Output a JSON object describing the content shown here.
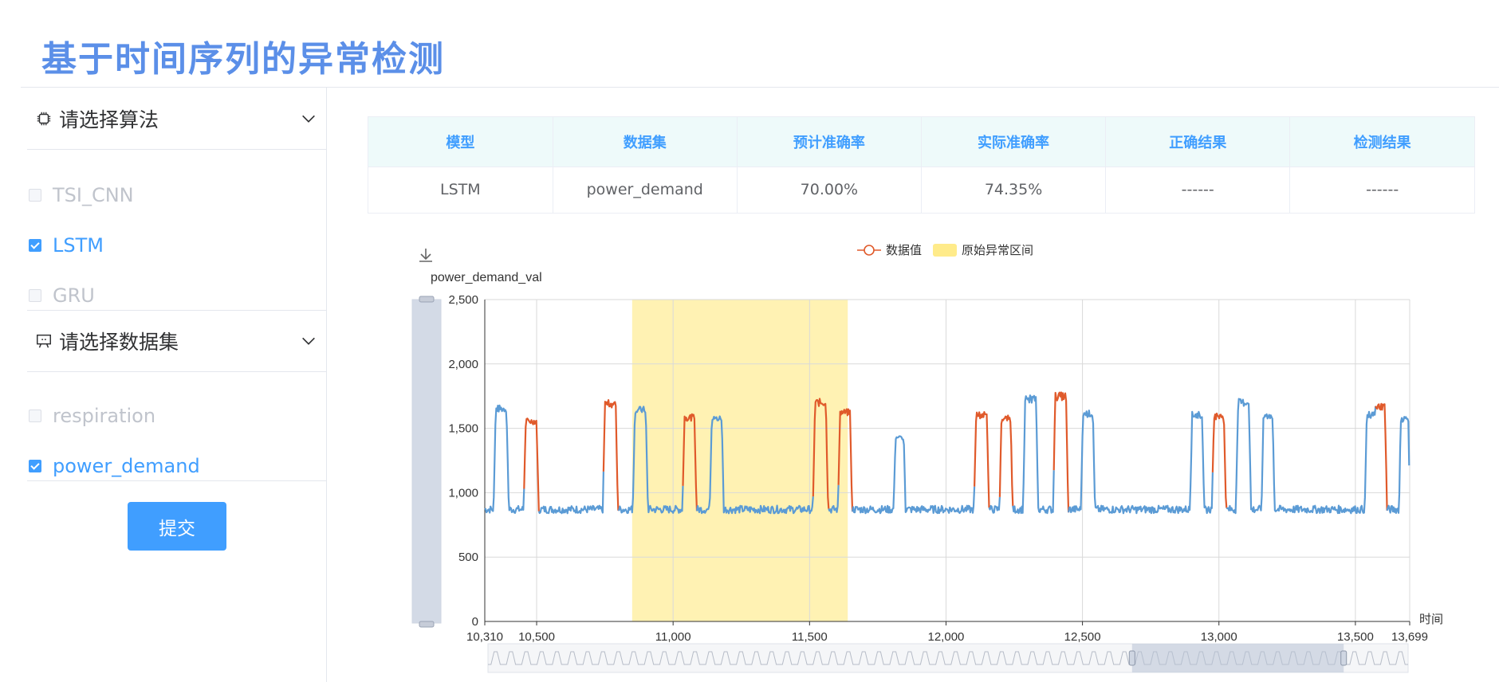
{
  "page": {
    "title": "基于时间序列的异常检测"
  },
  "sidebar": {
    "algorithm_header": "请选择算法",
    "algorithms": [
      {
        "label": "TSI_CNN",
        "checked": false
      },
      {
        "label": "LSTM",
        "checked": true
      },
      {
        "label": "GRU",
        "checked": false
      }
    ],
    "dataset_header": "请选择数据集",
    "datasets": [
      {
        "label": "respiration",
        "checked": false
      },
      {
        "label": "power_demand",
        "checked": true
      }
    ],
    "submit_label": "提交",
    "icons": {
      "algorithm": "chip-icon",
      "dataset": "presentation-icon",
      "collapse": "chevron-down-icon"
    }
  },
  "results_table": {
    "headers": [
      "模型",
      "数据集",
      "预计准确率",
      "实际准确率",
      "正确结果",
      "检测结果"
    ],
    "rows": [
      [
        "LSTM",
        "power_demand",
        "70.00%",
        "74.35%",
        "------",
        "------"
      ]
    ]
  },
  "colors": {
    "accent": "#409eff",
    "title": "#5b8fe8",
    "series": "#5b9bd5",
    "anomaly": "#e05a2b",
    "anomaly_region": "#fff2b3"
  },
  "chart_data": {
    "type": "line",
    "title": "",
    "ylabel": "power_demand_val",
    "xlabel": "时间",
    "xlim": [
      10310,
      13699
    ],
    "ylim": [
      0,
      2500
    ],
    "x_ticks": [
      "10,310",
      "10,500",
      "11,000",
      "11,500",
      "12,000",
      "12,500",
      "13,000",
      "13,500",
      "13,699"
    ],
    "y_ticks": [
      "0",
      "500",
      "1,000",
      "1,500",
      "2,000",
      "2,500"
    ],
    "legend": [
      {
        "name": "数据值",
        "marker": "circle-line"
      },
      {
        "name": "原始异常区间",
        "marker": "rect"
      }
    ],
    "legend_position": "top-center",
    "grid": true,
    "baseline": 870,
    "anomaly_regions": [
      [
        10850,
        11640
      ]
    ],
    "peaks": [
      {
        "center": 10370,
        "width": 28,
        "height": 1680,
        "anomaly": false
      },
      {
        "center": 10480,
        "width": 28,
        "height": 1580,
        "anomaly": true
      },
      {
        "center": 10770,
        "width": 28,
        "height": 1720,
        "anomaly": true
      },
      {
        "center": 10880,
        "width": 28,
        "height": 1670,
        "anomaly": false
      },
      {
        "center": 11060,
        "width": 26,
        "height": 1610,
        "anomaly": true
      },
      {
        "center": 11160,
        "width": 26,
        "height": 1600,
        "anomaly": false
      },
      {
        "center": 11540,
        "width": 28,
        "height": 1730,
        "anomaly": true
      },
      {
        "center": 11630,
        "width": 26,
        "height": 1650,
        "anomaly": true
      },
      {
        "center": 11830,
        "width": 22,
        "height": 1440,
        "anomaly": false
      },
      {
        "center": 12130,
        "width": 28,
        "height": 1630,
        "anomaly": true
      },
      {
        "center": 12220,
        "width": 24,
        "height": 1600,
        "anomaly": true
      },
      {
        "center": 12310,
        "width": 28,
        "height": 1760,
        "anomaly": false
      },
      {
        "center": 12420,
        "width": 28,
        "height": 1780,
        "anomaly": true
      },
      {
        "center": 12520,
        "width": 26,
        "height": 1640,
        "anomaly": false
      },
      {
        "center": 12920,
        "width": 26,
        "height": 1630,
        "anomaly": false
      },
      {
        "center": 13000,
        "width": 26,
        "height": 1620,
        "anomaly": true
      },
      {
        "center": 13090,
        "width": 28,
        "height": 1730,
        "anomaly": false
      },
      {
        "center": 13180,
        "width": 24,
        "height": 1620,
        "anomaly": false
      },
      {
        "center": 13560,
        "width": 26,
        "height": 1630,
        "anomaly": false
      },
      {
        "center": 13590,
        "width": 26,
        "height": 1700,
        "anomaly": true
      },
      {
        "center": 13680,
        "width": 20,
        "height": 1600,
        "anomaly": false
      }
    ],
    "zoom_window": [
      0.7,
      0.93
    ]
  }
}
